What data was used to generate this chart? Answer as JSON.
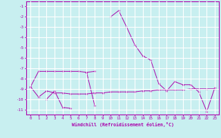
{
  "xlabel": "Windchill (Refroidissement éolien,°C)",
  "ylabel": "",
  "bg_color": "#c8eff0",
  "grid_color": "#ffffff",
  "line_color": "#aa00aa",
  "xlim": [
    -0.5,
    23.5
  ],
  "ylim": [
    -11.5,
    -0.5
  ],
  "xticks": [
    0,
    1,
    2,
    3,
    4,
    5,
    6,
    7,
    8,
    9,
    10,
    11,
    12,
    13,
    14,
    15,
    16,
    17,
    18,
    19,
    20,
    21,
    22,
    23
  ],
  "yticks": [
    -1,
    -2,
    -3,
    -4,
    -5,
    -6,
    -7,
    -8,
    -9,
    -10,
    -11
  ],
  "series": [
    [
      -8.8,
      null,
      null,
      null,
      null,
      null,
      null,
      null,
      null,
      null,
      null,
      null,
      null,
      null,
      null,
      null,
      null,
      null,
      null,
      null,
      null,
      null,
      null,
      null
    ],
    [
      -8.8,
      -7.3,
      -7.3,
      -7.3,
      -7.3,
      -7.3,
      -7.3,
      -7.4,
      -7.3,
      null,
      null,
      null,
      null,
      null,
      null,
      null,
      null,
      null,
      null,
      null,
      null,
      null,
      null,
      null
    ],
    [
      null,
      null,
      -10.0,
      -9.2,
      -10.8,
      -10.9,
      null,
      -7.4,
      -10.6,
      null,
      null,
      null,
      null,
      null,
      null,
      null,
      null,
      null,
      null,
      null,
      null,
      null,
      null,
      null
    ],
    [
      null,
      null,
      null,
      null,
      null,
      null,
      null,
      null,
      null,
      null,
      -2.0,
      -1.4,
      -3.0,
      -4.7,
      -5.8,
      -6.2,
      -8.5,
      -9.2,
      -8.3,
      -8.6,
      -8.6,
      -9.3,
      -11.2,
      -8.9
    ],
    [
      -8.8,
      -9.8,
      -9.2,
      -9.4,
      -9.4,
      -9.5,
      -9.5,
      -9.5,
      -9.4,
      -9.4,
      -9.3,
      -9.3,
      -9.3,
      -9.3,
      -9.2,
      -9.2,
      -9.1,
      -9.1,
      -9.1,
      -9.1,
      -9.0,
      -9.0,
      -9.0,
      -9.0
    ]
  ]
}
